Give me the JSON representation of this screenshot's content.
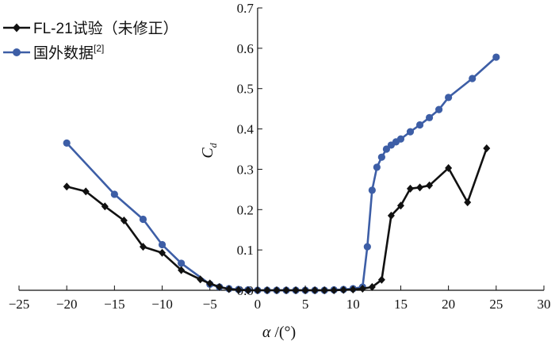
{
  "chart_data": {
    "type": "line",
    "x_axis": {
      "label_symbol": "α",
      "label_unit": " /(°)",
      "min": -25,
      "max": 30,
      "ticks": [
        -25,
        -20,
        -15,
        -10,
        -5,
        0,
        5,
        10,
        15,
        20,
        25,
        30
      ],
      "tick_labels": [
        "−25",
        "−20",
        "−15",
        "−10",
        "−5",
        "0",
        "5",
        "10",
        "15",
        "20",
        "25",
        "30"
      ]
    },
    "y_axis": {
      "label_symbol": "C",
      "label_subscript": "d",
      "min": 0,
      "max": 0.7,
      "ticks": [
        0.0,
        0.1,
        0.2,
        0.3,
        0.4,
        0.5,
        0.6,
        0.7
      ],
      "tick_labels": [
        "0.0",
        "0.1",
        "0.2",
        "0.3",
        "0.4",
        "0.5",
        "0.6",
        "0.7"
      ]
    },
    "grid": false,
    "legend_position": "top-left",
    "series": [
      {
        "name": "FL-21试验（未修正）",
        "color": "#111111",
        "marker": "diamond",
        "x": [
          -20,
          -18,
          -16,
          -14,
          -12,
          -10,
          -8,
          -6,
          -5,
          -4,
          -3,
          -2,
          -1,
          0,
          1,
          2,
          3,
          4,
          5,
          6,
          7,
          8,
          9,
          10,
          11,
          12,
          13,
          14,
          15,
          16,
          17,
          18,
          20,
          22,
          24
        ],
        "y": [
          0.257,
          0.245,
          0.208,
          0.173,
          0.108,
          0.093,
          0.05,
          0.027,
          0.017,
          0.008,
          0.003,
          0.001,
          0.0,
          0.0,
          0.0,
          0.0,
          0.0,
          0.0,
          0.0,
          0.0,
          0.0,
          0.0,
          0.001,
          0.002,
          0.004,
          0.008,
          0.026,
          0.185,
          0.21,
          0.252,
          0.255,
          0.26,
          0.303,
          0.218,
          0.352
        ]
      },
      {
        "name": "国外数据",
        "name_superscript": "[2]",
        "color": "#3d5ea6",
        "marker": "circle",
        "x": [
          -20,
          -15,
          -12,
          -10,
          -8,
          -5,
          -4,
          -3,
          -2,
          -1,
          0,
          1,
          2,
          3,
          4,
          5,
          6,
          7,
          8,
          9,
          10,
          11,
          11.5,
          12,
          12.5,
          13,
          13.5,
          14,
          14.5,
          15,
          16,
          17,
          18,
          19,
          20,
          22.5,
          25
        ],
        "y": [
          0.365,
          0.238,
          0.176,
          0.113,
          0.067,
          0.015,
          0.008,
          0.004,
          0.002,
          0.001,
          0.0,
          0.0,
          0.0,
          0.0,
          0.0,
          0.0,
          0.0,
          0.0,
          0.001,
          0.002,
          0.004,
          0.008,
          0.108,
          0.248,
          0.305,
          0.33,
          0.35,
          0.36,
          0.368,
          0.375,
          0.393,
          0.41,
          0.428,
          0.448,
          0.478,
          0.525,
          0.578
        ]
      }
    ]
  }
}
